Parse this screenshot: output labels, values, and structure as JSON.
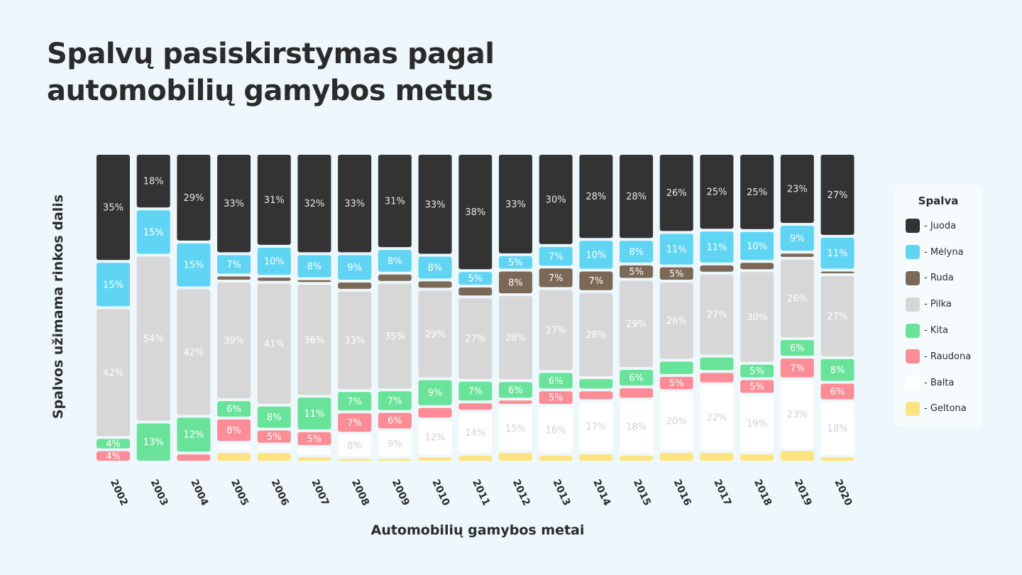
{
  "title": "Spalvų pasiskirstymas pagal automobilių gamybos metus",
  "chart_data": {
    "type": "bar",
    "stacked": true,
    "orientation": "vertical",
    "xlabel": "Automobilių gamybos metai",
    "ylabel": "Spalvos užimama rinkos dalis",
    "ylim": [
      0,
      100
    ],
    "grid": false,
    "legend_position": "right",
    "legend_title": "Spalva",
    "categories": [
      "2002",
      "2003",
      "2004",
      "2005",
      "2006",
      "2007",
      "2008",
      "2009",
      "2010",
      "2011",
      "2012",
      "2013",
      "2014",
      "2015",
      "2016",
      "2017",
      "2018",
      "2019",
      "2020"
    ],
    "series": [
      {
        "name": "- Juoda",
        "color": "#333333",
        "label_color": "#e6e6e6",
        "values": [
          35,
          18,
          29,
          33,
          31,
          32,
          33,
          31,
          33,
          38,
          33,
          30,
          28,
          28,
          26,
          25,
          25,
          23,
          27
        ]
      },
      {
        "name": "- Mėlyna",
        "color": "#5fd4f3",
        "label_color": "#ffffff",
        "values": [
          15,
          15,
          15,
          7,
          10,
          8,
          9,
          8,
          8,
          5,
          5,
          7,
          10,
          8,
          11,
          11,
          10,
          9,
          11
        ]
      },
      {
        "name": "- Ruda",
        "color": "#7b6856",
        "label_color": "#ffffff",
        "values": [
          0,
          0,
          0,
          2,
          2,
          1.5,
          3,
          3,
          3,
          3.5,
          8,
          7,
          7,
          5,
          5,
          3,
          3,
          2,
          1.5
        ]
      },
      {
        "name": "- Pilka",
        "color": "#d7d7d7",
        "label_color": "#ffffff",
        "values": [
          42,
          54,
          42,
          39,
          41,
          36,
          33,
          35,
          29,
          27,
          28,
          27,
          28,
          29,
          26,
          27,
          30,
          26,
          27
        ]
      },
      {
        "name": "- Kita",
        "color": "#69e39a",
        "label_color": "#ffffff",
        "values": [
          4,
          13,
          12,
          6,
          8,
          11,
          7,
          7,
          9,
          7,
          6,
          6,
          4,
          6,
          5,
          5,
          5,
          6,
          8
        ]
      },
      {
        "name": "- Raudona",
        "color": "#fc8c95",
        "label_color": "#ffffff",
        "values": [
          4,
          0,
          3,
          8,
          5,
          5,
          7,
          6,
          4,
          3,
          2,
          5,
          3.5,
          4,
          5,
          4,
          5,
          7,
          6
        ]
      },
      {
        "name": "- Balta",
        "color": "#ffffff",
        "label_color": "#d0d0d0",
        "values": [
          0,
          0,
          0,
          3,
          2.5,
          3,
          8,
          9,
          12,
          14,
          15,
          16,
          17,
          18,
          20,
          22,
          19,
          23,
          18
        ]
      },
      {
        "name": "- Geltona",
        "color": "#fde47c",
        "label_color": "#ffffff",
        "values": [
          0,
          0,
          0,
          3.5,
          3.5,
          2,
          1.5,
          1.5,
          2,
          2.5,
          3.5,
          2.5,
          3,
          2.5,
          3.5,
          3.5,
          3,
          4,
          2
        ]
      }
    ],
    "labels": [
      [
        "35%",
        "18%",
        "29%",
        "33%",
        "31%",
        "32%",
        "33%",
        "31%",
        "33%",
        "38%",
        "33%",
        "30%",
        "28%",
        "28%",
        "26%",
        "25%",
        "25%",
        "23%",
        "27%"
      ],
      [
        "15%",
        "15%",
        "15%",
        "7%",
        "10%",
        "8%",
        "9%",
        "8%",
        "8%",
        "5%",
        "5%",
        "7%",
        "10%",
        "8%",
        "11%",
        "11%",
        "10%",
        "9%",
        "11%"
      ],
      [
        "",
        "",
        "",
        "",
        "",
        "",
        "",
        "",
        "",
        "",
        "8%",
        "7%",
        "7%",
        "5%",
        "5%",
        "",
        "",
        "",
        ""
      ],
      [
        "42%",
        "54%",
        "42%",
        "39%",
        "41%",
        "36%",
        "33%",
        "35%",
        "29%",
        "27%",
        "28%",
        "27%",
        "28%",
        "29%",
        "26%",
        "27%",
        "30%",
        "26%",
        "27%"
      ],
      [
        "4%",
        "13%",
        "12%",
        "6%",
        "8%",
        "11%",
        "7%",
        "7%",
        "9%",
        "7%",
        "6%",
        "6%",
        "",
        "6%",
        "",
        "",
        "5%",
        "6%",
        "8%"
      ],
      [
        "4%",
        "",
        "",
        "8%",
        "5%",
        "5%",
        "7%",
        "6%",
        "",
        "",
        "",
        "5%",
        "",
        "",
        "5%",
        "",
        "5%",
        "7%",
        "6%"
      ],
      [
        "",
        "",
        "",
        "",
        "",
        "",
        "8%",
        "9%",
        "12%",
        "14%",
        "15%",
        "16%",
        "17%",
        "18%",
        "20%",
        "22%",
        "19%",
        "23%",
        "18%"
      ],
      [
        "",
        "",
        "",
        "",
        "",
        "",
        "",
        "",
        "",
        "",
        "",
        "",
        "",
        "",
        "",
        "",
        "",
        "",
        ""
      ]
    ]
  }
}
